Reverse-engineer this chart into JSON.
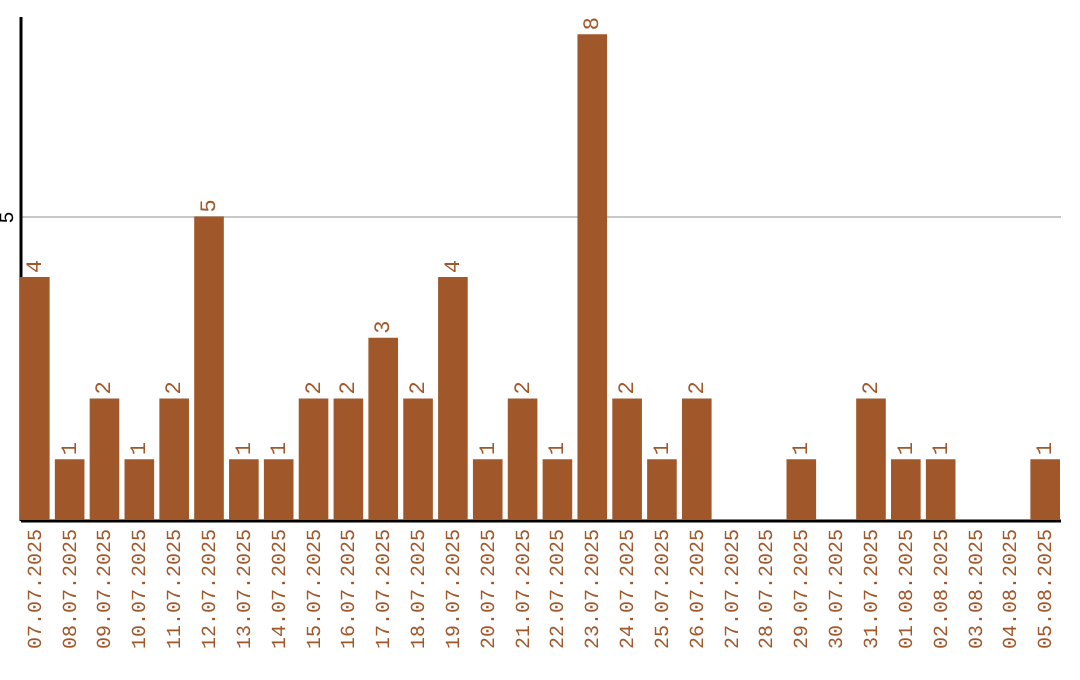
{
  "chart_data": {
    "type": "bar",
    "categories": [
      "07.07.2025",
      "08.07.2025",
      "09.07.2025",
      "10.07.2025",
      "11.07.2025",
      "12.07.2025",
      "13.07.2025",
      "14.07.2025",
      "15.07.2025",
      "16.07.2025",
      "17.07.2025",
      "18.07.2025",
      "19.07.2025",
      "20.07.2025",
      "21.07.2025",
      "22.07.2025",
      "23.07.2025",
      "24.07.2025",
      "25.07.2025",
      "26.07.2025",
      "27.07.2025",
      "28.07.2025",
      "29.07.2025",
      "30.07.2025",
      "31.07.2025",
      "01.08.2025",
      "02.08.2025",
      "03.08.2025",
      "04.08.2025",
      "05.08.2025"
    ],
    "values": [
      4,
      1,
      2,
      1,
      2,
      5,
      1,
      1,
      2,
      2,
      3,
      2,
      4,
      1,
      2,
      1,
      8,
      2,
      1,
      2,
      null,
      null,
      1,
      null,
      2,
      1,
      1,
      null,
      null,
      1
    ],
    "color": "#a0572a",
    "ylim": [
      0,
      8.3
    ],
    "yticks": [
      5
    ],
    "grid": "y",
    "data_labels": true
  }
}
